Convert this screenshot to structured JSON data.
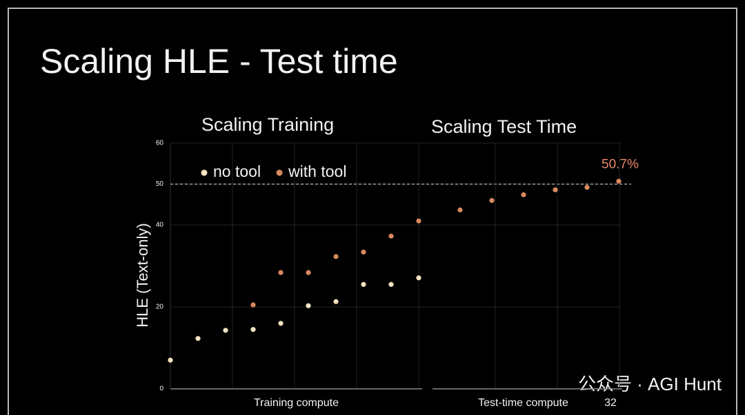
{
  "slide": {
    "title": "Scaling HLE - Test time",
    "page_number": "32",
    "watermark": "公众号 · AGI Hunt"
  },
  "chart_data": [
    {
      "type": "scatter",
      "title": "Scaling Training",
      "x_label": "Training compute",
      "y_label": "HLE (Text-only)",
      "categories": [
        null,
        null,
        null,
        null,
        null,
        null,
        null,
        null,
        null,
        null
      ],
      "series": [
        {
          "name": "no tool",
          "color": "#f3e3c0",
          "values": [
            7,
            12.3,
            14.3,
            14.5,
            16,
            20.3,
            21.3,
            25.5,
            25.5,
            27.1
          ]
        },
        {
          "name": "with tool",
          "color": "#d9895f",
          "values": [
            null,
            null,
            null,
            20.5,
            28.4,
            28.4,
            32.3,
            33.4,
            37.3,
            41
          ]
        }
      ],
      "ylim": [
        0,
        60
      ],
      "yticks": [
        0,
        20,
        40,
        50,
        60
      ],
      "grid": true,
      "reference_line": 50
    },
    {
      "type": "scatter",
      "title": "Scaling Test Time",
      "x_label": "Test-time compute",
      "categories": [
        null,
        null,
        null,
        null,
        null,
        null
      ],
      "series": [
        {
          "color": "#d9895f",
          "values": [
            43.7,
            46,
            47.4,
            48.6,
            49.2,
            50.7
          ],
          "value_labels": [
            null,
            null,
            null,
            null,
            null,
            "50.7%"
          ]
        }
      ],
      "ylim": [
        0,
        60
      ]
    }
  ]
}
